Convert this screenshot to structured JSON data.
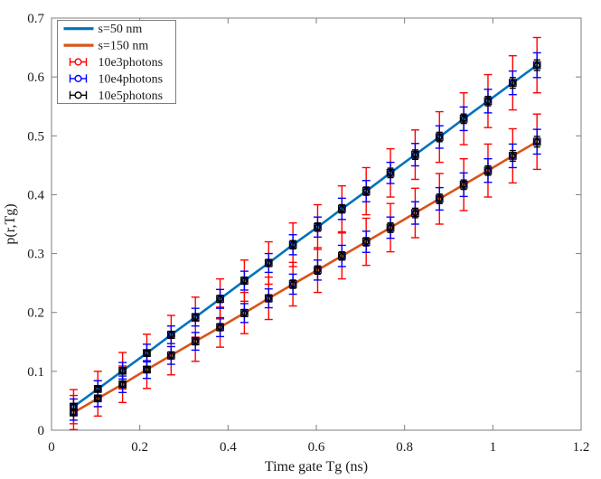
{
  "figure": {
    "bg": "#ffffff",
    "axis_color": "#7f7f7f",
    "text_color": "#1a1a1a",
    "xlabel": "Time gate Tg (ns)",
    "ylabel": "p(r,Tg)",
    "xlim": [
      0,
      1.2
    ],
    "ylim": [
      0,
      0.7
    ],
    "x_ticks": [
      0,
      0.2,
      0.4,
      0.6,
      0.8,
      1,
      1.2
    ],
    "x_tick_labels": [
      "0",
      "0.2",
      "0.4",
      "0.6",
      "0.8",
      "1",
      "1.2"
    ],
    "y_ticks": [
      0,
      0.1,
      0.2,
      0.3,
      0.4,
      0.5,
      0.6,
      0.7
    ],
    "y_tick_labels": [
      "0",
      "0.1",
      "0.2",
      "0.3",
      "0.4",
      "0.5",
      "0.6",
      "0.7"
    ]
  },
  "legend": {
    "entries": [
      {
        "type": "line",
        "color": "#0072BD",
        "label": "s=50 nm"
      },
      {
        "type": "line",
        "color": "#D95319",
        "label": "s=150 nm"
      },
      {
        "type": "errorbar",
        "color": "#FF0000",
        "label": "10e3photons"
      },
      {
        "type": "errorbar",
        "color": "#0000FF",
        "label": "10e4photons"
      },
      {
        "type": "errorbar",
        "color": "#000000",
        "label": "10e5photons"
      }
    ]
  },
  "chart_data": {
    "type": "line",
    "title": "",
    "xlabel": "Time gate Tg (ns)",
    "ylabel": "p(r,Tg)",
    "xlim": [
      0,
      1.2
    ],
    "ylim": [
      0,
      0.7
    ],
    "grid": false,
    "legend_position": "northwest",
    "x": [
      0.05,
      0.105,
      0.161,
      0.216,
      0.271,
      0.326,
      0.382,
      0.437,
      0.492,
      0.547,
      0.603,
      0.658,
      0.713,
      0.768,
      0.824,
      0.879,
      0.934,
      0.989,
      1.045,
      1.1
    ],
    "series": [
      {
        "name": "s=50 nm",
        "color": "#0072BD",
        "values": [
          0.04,
          0.07,
          0.101,
          0.131,
          0.162,
          0.192,
          0.223,
          0.254,
          0.284,
          0.315,
          0.345,
          0.376,
          0.406,
          0.437,
          0.468,
          0.498,
          0.529,
          0.559,
          0.59,
          0.62
        ]
      },
      {
        "name": "s=150 nm",
        "color": "#D95319",
        "values": [
          0.03,
          0.054,
          0.078,
          0.103,
          0.127,
          0.151,
          0.175,
          0.199,
          0.224,
          0.248,
          0.272,
          0.296,
          0.32,
          0.344,
          0.369,
          0.393,
          0.417,
          0.441,
          0.466,
          0.49
        ]
      }
    ],
    "errorbars": [
      {
        "name": "10e3photons",
        "color": "#FF0000",
        "half_errors": [
          0.029,
          0.03,
          0.031,
          0.032,
          0.033,
          0.034,
          0.034,
          0.035,
          0.036,
          0.037,
          0.038,
          0.039,
          0.04,
          0.041,
          0.042,
          0.043,
          0.044,
          0.045,
          0.046,
          0.047
        ]
      },
      {
        "name": "10e4photons",
        "color": "#0000FF",
        "half_errors": [
          0.013,
          0.014,
          0.014,
          0.015,
          0.015,
          0.015,
          0.016,
          0.016,
          0.016,
          0.017,
          0.017,
          0.018,
          0.018,
          0.018,
          0.019,
          0.019,
          0.02,
          0.02,
          0.02,
          0.021
        ]
      },
      {
        "name": "10e5photons",
        "color": "#000000",
        "half_errors": [
          0.005,
          0.005,
          0.005,
          0.005,
          0.006,
          0.006,
          0.006,
          0.006,
          0.006,
          0.007,
          0.007,
          0.007,
          0.007,
          0.008,
          0.008,
          0.008,
          0.008,
          0.008,
          0.009,
          0.009
        ]
      }
    ]
  }
}
